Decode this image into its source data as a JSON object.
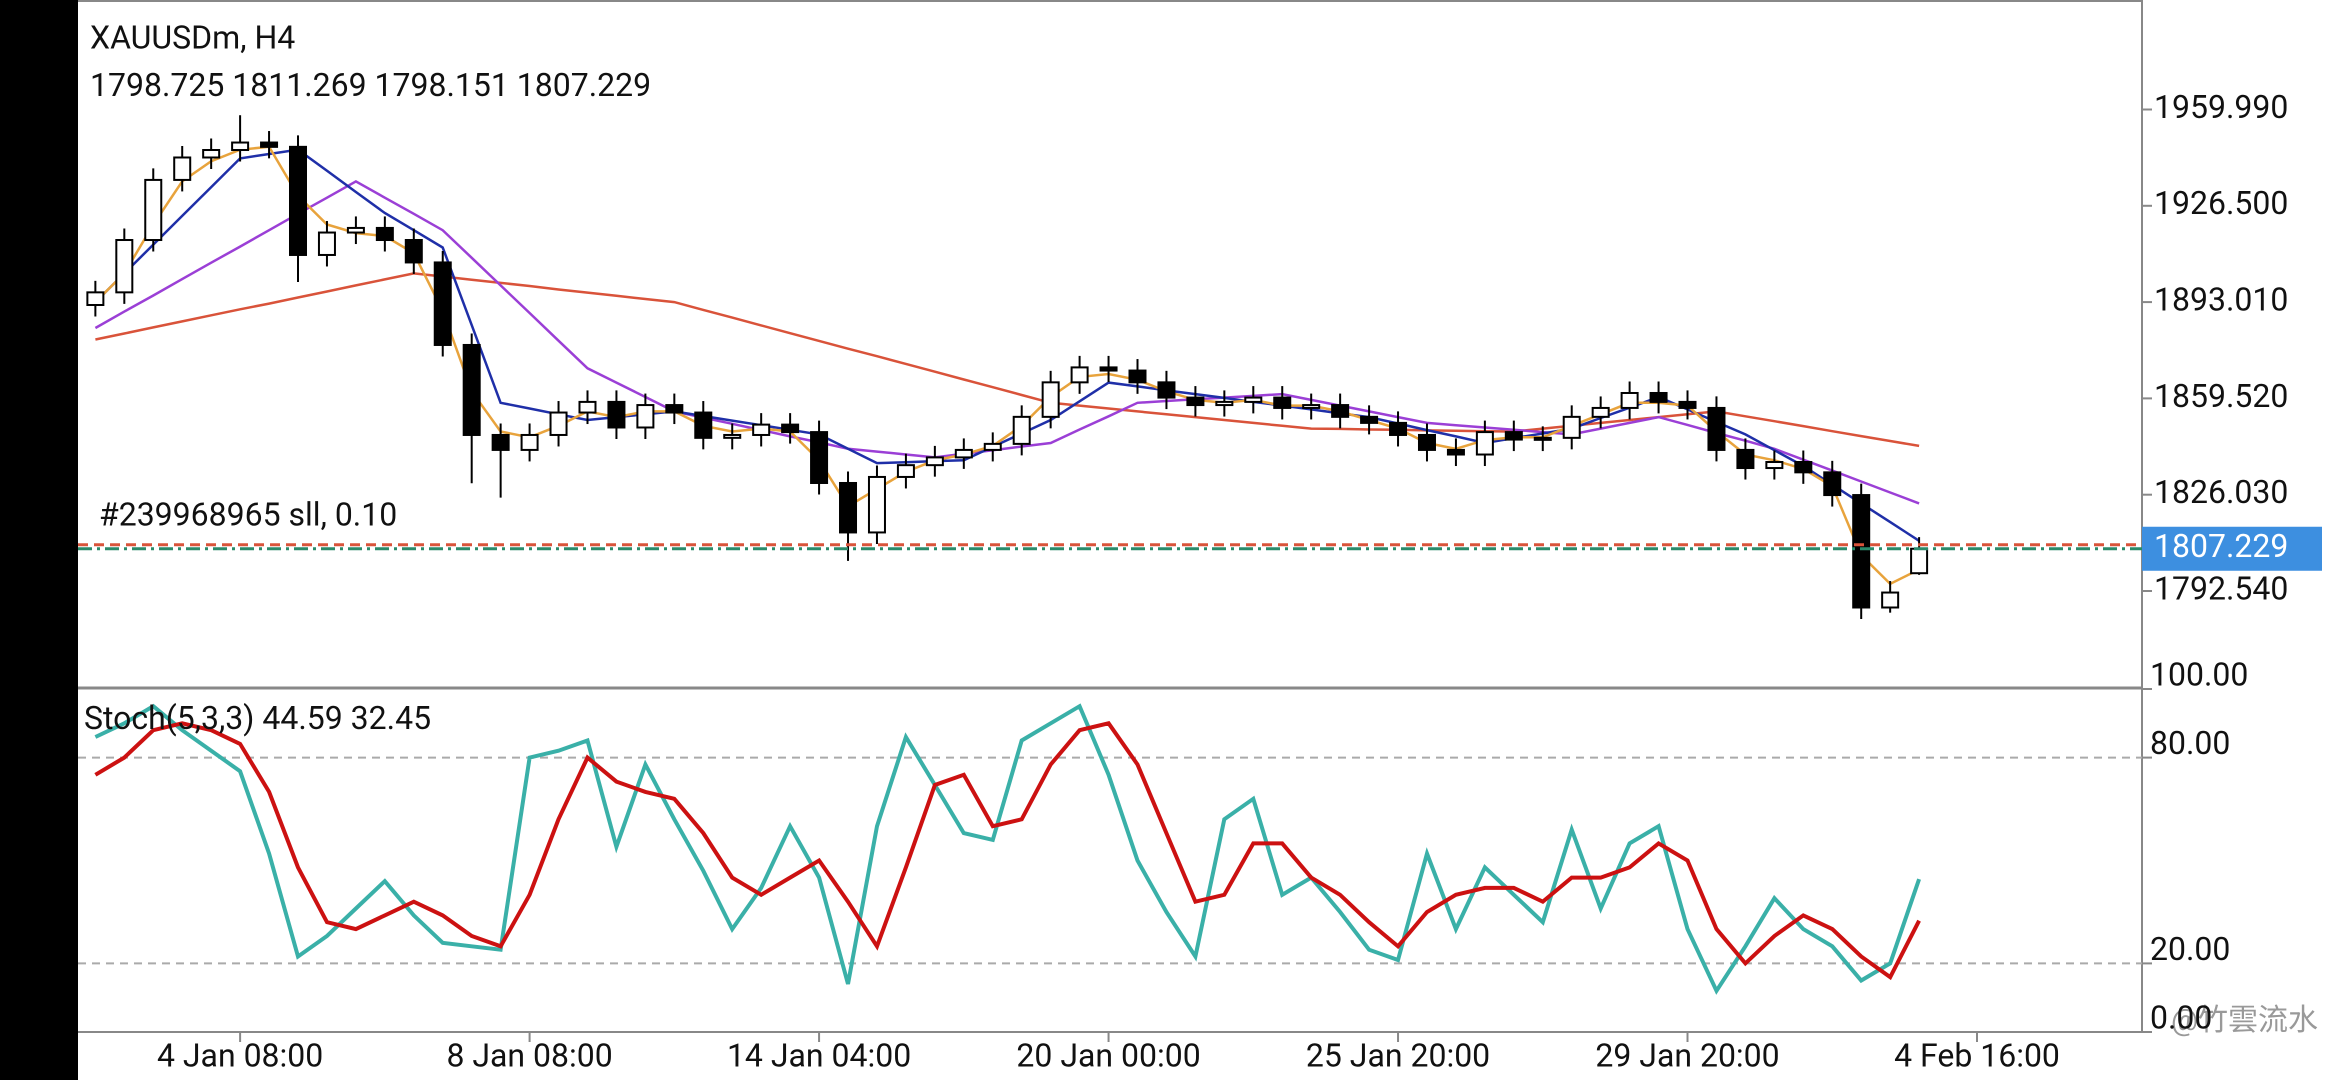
{
  "chart_data": [
    {
      "type": "candlestick",
      "title": "XAUUSDm, H4",
      "open": [
        1892,
        1896.4,
        1914.6,
        1935.5,
        1943.3,
        1945.9,
        1948.5,
        1947,
        1909.4,
        1917.2,
        1918.8,
        1914.6,
        1906.8,
        1878.1,
        1846.8,
        1841.6,
        1846.8,
        1854.6,
        1858.3,
        1849.4,
        1857.2,
        1854.6,
        1845.8,
        1846.8,
        1850.4,
        1847.8,
        1830.1,
        1812.9,
        1832.2,
        1836.3,
        1839,
        1841.6,
        1843.7,
        1853.1,
        1865.1,
        1870.3,
        1869.2,
        1865.1,
        1859.8,
        1857.2,
        1858.3,
        1859.8,
        1856.2,
        1857.2,
        1853.1,
        1851,
        1846.8,
        1841.6,
        1840,
        1847.8,
        1845.2,
        1845.8,
        1853.1,
        1856.2,
        1861.4,
        1858.3,
        1856.2,
        1841.6,
        1835.3,
        1837.4,
        1833.8,
        1825.9,
        1786.8,
        1798.725
      ],
      "high": [
        1900.4,
        1918.6,
        1939.5,
        1947.3,
        1949.9,
        1958,
        1952.5,
        1951,
        1921.2,
        1922.8,
        1922.8,
        1918.6,
        1910.8,
        1882.1,
        1850.8,
        1850.8,
        1858.6,
        1862.3,
        1862.3,
        1861.2,
        1861.2,
        1858.6,
        1850.8,
        1854.4,
        1854.4,
        1851.8,
        1834.1,
        1836.2,
        1840.3,
        1843,
        1845.6,
        1847.7,
        1857.1,
        1869.1,
        1874.3,
        1874.3,
        1873.2,
        1869.1,
        1863.8,
        1862.3,
        1863.8,
        1863.8,
        1861.2,
        1861.2,
        1857.1,
        1855,
        1850.8,
        1845.6,
        1851.8,
        1851.8,
        1849.8,
        1857.1,
        1860.2,
        1865.4,
        1865.4,
        1862.3,
        1860.2,
        1845.6,
        1841.4,
        1841.4,
        1837.8,
        1829.9,
        1796,
        1811.269
      ],
      "low": [
        1888,
        1892.4,
        1910.6,
        1931.5,
        1939.3,
        1941.9,
        1943,
        1900,
        1905.4,
        1913.2,
        1910.6,
        1902.8,
        1874.1,
        1830,
        1825,
        1837.6,
        1842.8,
        1850.6,
        1845.4,
        1845.4,
        1850.6,
        1841.8,
        1841.8,
        1842.8,
        1843.8,
        1826.1,
        1803,
        1808.9,
        1828.2,
        1832.3,
        1835,
        1837.6,
        1839.7,
        1849.1,
        1861.1,
        1865.2,
        1861.1,
        1855.8,
        1853.2,
        1853.2,
        1854.3,
        1852.2,
        1852.2,
        1849.1,
        1847,
        1842.8,
        1837.6,
        1836,
        1836,
        1841.2,
        1841.2,
        1841.8,
        1849.1,
        1852.2,
        1854.3,
        1852.2,
        1837.6,
        1831.3,
        1831.3,
        1829.8,
        1821.9,
        1782.8,
        1785,
        1798.151
      ],
      "close": [
        1896.4,
        1914.6,
        1935.5,
        1943.3,
        1945.9,
        1948.5,
        1947,
        1909.4,
        1917.2,
        1918.8,
        1914.6,
        1906.8,
        1878.1,
        1846.8,
        1841.6,
        1846.8,
        1854.6,
        1858.3,
        1849.4,
        1857.2,
        1854.6,
        1845.8,
        1846.8,
        1850.4,
        1847.8,
        1830.1,
        1812.9,
        1832.2,
        1836.3,
        1839,
        1841.6,
        1843.7,
        1853.1,
        1865.1,
        1870.3,
        1869.2,
        1865.1,
        1859.8,
        1857.2,
        1858.3,
        1859.8,
        1856.2,
        1857.2,
        1853.1,
        1851,
        1846.8,
        1841.6,
        1840,
        1847.8,
        1845.2,
        1845.8,
        1853.1,
        1856.2,
        1861.4,
        1858.3,
        1856.2,
        1841.6,
        1835.3,
        1837.4,
        1833.8,
        1825.9,
        1786.8,
        1792,
        1807.229
      ],
      "overlays": [
        {
          "color": "#d9533a",
          "values": [
            1880,
            1882.1,
            1884.2,
            1886.3,
            1888.4,
            1890.5,
            1892.5,
            1894.6,
            1896.7,
            1898.8,
            1900.9,
            1903,
            1901.9,
            1900.8,
            1899.7,
            1898.6,
            1897.4,
            1896.3,
            1895.2,
            1894.1,
            1893,
            1890.3,
            1887.6,
            1884.9,
            1882.2,
            1879.5,
            1876.8,
            1874.2,
            1871.5,
            1868.8,
            1866.1,
            1863.4,
            1860.7,
            1858,
            1857,
            1856,
            1855,
            1854,
            1853,
            1852,
            1851,
            1850,
            1849,
            1848.9,
            1848.7,
            1848.6,
            1848.4,
            1848.3,
            1848.1,
            1848,
            1849,
            1850,
            1851,
            1852,
            1853,
            1854,
            1855,
            1853.3,
            1851.6,
            1849.9,
            1848.1,
            1846.4,
            1844.7,
            1843
          ]
        },
        {
          "color": "#9b3fd6",
          "values": [
            1884,
            1889.7,
            1895.3,
            1901,
            1906.7,
            1912.3,
            1918,
            1923.7,
            1929.3,
            1935,
            1929.3,
            1923.7,
            1918,
            1908.4,
            1898.8,
            1889.2,
            1879.6,
            1870,
            1865,
            1860,
            1855,
            1852.8,
            1850.7,
            1848.5,
            1846.3,
            1844.2,
            1842,
            1841,
            1840,
            1839,
            1840.3,
            1841.5,
            1842.8,
            1844,
            1848.7,
            1853.3,
            1858,
            1858.6,
            1859.2,
            1859.8,
            1860.4,
            1861,
            1859,
            1857,
            1855,
            1853,
            1851,
            1850.2,
            1849.4,
            1848.6,
            1847.8,
            1847,
            1849,
            1851,
            1853,
            1850.3,
            1847.5,
            1844.8,
            1842,
            1838.2,
            1834.4,
            1830.6,
            1826.8,
            1823
          ]
        },
        {
          "color": "#1f2fa8",
          "values": [
            1893,
            1903,
            1913,
            1923,
            1933,
            1943,
            1944.5,
            1946,
            1938.7,
            1931.3,
            1924,
            1918,
            1912,
            1885,
            1858,
            1856,
            1854,
            1852,
            1853,
            1854,
            1855,
            1853.4,
            1851.8,
            1850.2,
            1848.6,
            1847,
            1842,
            1837,
            1837.3,
            1837.7,
            1838,
            1842.7,
            1847.3,
            1852,
            1858.5,
            1865,
            1863.7,
            1862.3,
            1861,
            1859.7,
            1858.3,
            1857,
            1855.7,
            1854.3,
            1853,
            1850.8,
            1848.5,
            1846.3,
            1844,
            1845.7,
            1847.3,
            1849,
            1852.7,
            1856.3,
            1860,
            1855.7,
            1851.3,
            1847,
            1841.5,
            1836,
            1829.5,
            1823,
            1816.5,
            1810
          ]
        },
        {
          "color": "#e8a33c",
          "values": [
            1893,
            1903,
            1920,
            1935,
            1942,
            1946,
            1947,
            1930,
            1920,
            1917,
            1916,
            1910,
            1890,
            1862,
            1848,
            1846,
            1850,
            1855,
            1853,
            1855,
            1855,
            1850,
            1848,
            1849,
            1848,
            1838,
            1822,
            1828,
            1834,
            1838,
            1840,
            1843,
            1850,
            1860,
            1867,
            1868,
            1866,
            1862,
            1859,
            1858,
            1859,
            1857,
            1857,
            1855,
            1852,
            1849,
            1844,
            1842,
            1845,
            1846,
            1846,
            1850,
            1854,
            1858,
            1858,
            1857,
            1848,
            1840,
            1838,
            1835,
            1829,
            1805,
            1795,
            1800
          ]
        }
      ],
      "order": {
        "label": "#239968965 sll, 0.10",
        "price": 1808.6
      },
      "xlim": [
        -0.6,
        70.7
      ],
      "ylim": [
        1759.15,
        1998.07
      ],
      "yticks": [
        {
          "value": 1959.99,
          "label": "1959.990"
        },
        {
          "value": 1926.5,
          "label": "1926.500"
        },
        {
          "value": 1893.01,
          "label": "1893.010"
        },
        {
          "value": 1859.52,
          "label": "1859.520"
        },
        {
          "value": 1826.03,
          "label": "1826.030"
        },
        {
          "value": 1792.54,
          "label": "1792.540"
        }
      ]
    },
    {
      "type": "line",
      "title": "Stoch(5,3,3)",
      "series": [
        {
          "color": "#3ab0a8",
          "values": [
            86,
            90,
            95,
            88,
            82,
            76,
            52,
            22,
            28,
            36,
            44,
            34,
            26,
            25,
            24,
            80,
            82,
            85,
            54,
            78,
            62,
            47,
            30,
            42,
            60,
            45,
            14,
            60,
            86,
            72,
            58,
            56,
            85,
            90,
            95,
            75,
            50,
            35,
            22,
            62,
            68,
            40,
            45,
            35,
            24,
            21,
            52,
            30,
            48,
            40,
            32,
            59,
            36,
            55,
            60,
            30,
            12,
            25,
            39,
            30,
            25,
            15,
            20,
            44.59
          ]
        },
        {
          "color": "#cc1111",
          "values": [
            75,
            80,
            88,
            90,
            88,
            84,
            70,
            48,
            32,
            30,
            34,
            38,
            34,
            28,
            25,
            40,
            62,
            80,
            73,
            70,
            68,
            58,
            45,
            40,
            45,
            50,
            38,
            25,
            48,
            72,
            75,
            60,
            62,
            78,
            88,
            90,
            78,
            58,
            38,
            40,
            55,
            55,
            45,
            40,
            32,
            25,
            35,
            40,
            42,
            42,
            38,
            45,
            45,
            48,
            55,
            50,
            30,
            20,
            28,
            34,
            30,
            22,
            16,
            32.45
          ]
        }
      ],
      "xlim": [
        -0.6,
        70.7
      ],
      "xticks": [
        {
          "value": 5,
          "label": "4 Jan 08:00"
        },
        {
          "value": 15,
          "label": "8 Jan 08:00"
        },
        {
          "value": 25,
          "label": "14 Jan 04:00"
        },
        {
          "value": 35,
          "label": "20 Jan 00:00"
        },
        {
          "value": 45,
          "label": "25 Jan 20:00"
        },
        {
          "value": 55,
          "label": "29 Jan 20:00"
        },
        {
          "value": 65,
          "label": "4 Feb 16:00"
        }
      ],
      "ylim": [
        0,
        100
      ],
      "yticks": [
        {
          "value": 100,
          "label": "100.00"
        },
        {
          "value": 80,
          "label": "80.00"
        },
        {
          "value": 20,
          "label": "20.00"
        },
        {
          "value": 0,
          "label": "0.00"
        }
      ],
      "levels": [
        20,
        80
      ]
    }
  ],
  "watermark": "@竹雲流水"
}
